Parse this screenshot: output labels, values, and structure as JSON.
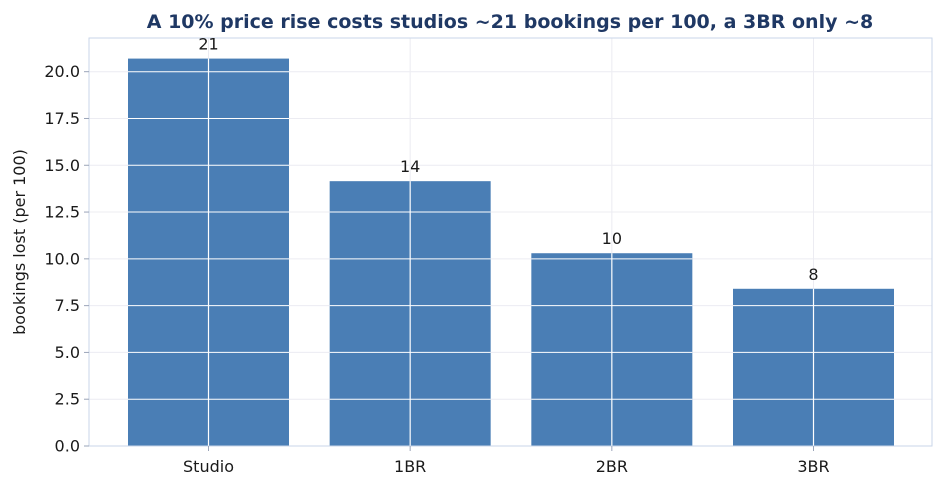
{
  "chart_data": {
    "type": "bar",
    "title": "A 10% price rise costs studios ~21 bookings per 100, a 3BR only ~8",
    "xlabel": "",
    "ylabel": "bookings lost (per 100)",
    "categories": [
      "Studio",
      "1BR",
      "2BR",
      "3BR"
    ],
    "values": [
      20.7,
      14.15,
      10.3,
      8.4
    ],
    "data_labels": [
      "21",
      "14",
      "10",
      "8"
    ],
    "ylim": [
      0,
      21.8
    ],
    "yticks": [
      0,
      2.5,
      5,
      7.5,
      10,
      12.5,
      15,
      17.5,
      20
    ],
    "ytick_labels": [
      "0.0",
      "2.5",
      "5.0",
      "7.5",
      "10.0",
      "12.5",
      "15.0",
      "17.5",
      "20.0"
    ],
    "grid": true,
    "legend": false,
    "bar_color": "#4a7eb5",
    "title_color": "#1f3864"
  }
}
